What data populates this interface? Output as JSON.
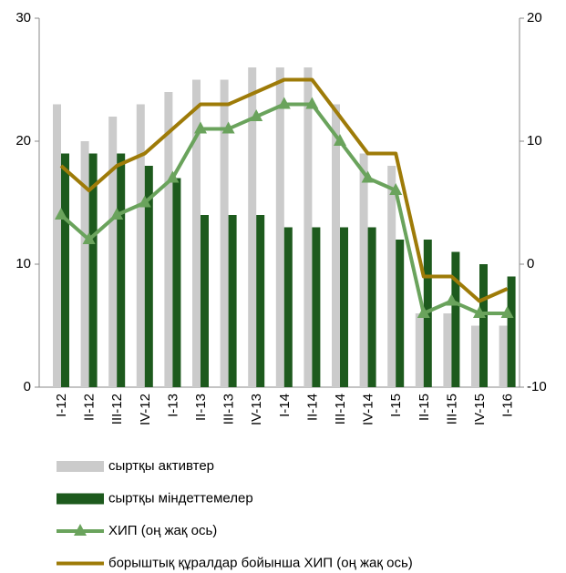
{
  "chart_data": {
    "type": "bar",
    "categories": [
      "I-12",
      "II-12",
      "III-12",
      "IV-12",
      "I-13",
      "II-13",
      "III-13",
      "IV-13",
      "I-14",
      "II-14",
      "III-14",
      "IV-14",
      "I-15",
      "II-15",
      "III-15",
      "IV-15",
      "I-16"
    ],
    "ylim": [
      0,
      30
    ],
    "yticks": [
      0,
      10,
      20,
      30
    ],
    "y2lim": [
      -10,
      20
    ],
    "y2ticks": [
      -10,
      0,
      10,
      20
    ],
    "series": [
      {
        "name": "сыртқы активтер",
        "type": "bar",
        "color": "#cbcbcb",
        "values": [
          23,
          20,
          22,
          23,
          24,
          25,
          25,
          26,
          26,
          26,
          23,
          19,
          18,
          6,
          6,
          5,
          5
        ]
      },
      {
        "name": "сыртқы міндеттемелер",
        "type": "bar",
        "color": "#1d5a1d",
        "values": [
          19,
          19,
          19,
          18,
          17,
          14,
          14,
          14,
          13,
          13,
          13,
          13,
          12,
          12,
          11,
          10,
          9
        ]
      },
      {
        "name": "ХИП (оң жақ ось)",
        "type": "line",
        "axis": "y2",
        "color": "#6aa35c",
        "marker": "triangle",
        "values": [
          4,
          2,
          4,
          5,
          7,
          11,
          11,
          12,
          13,
          13,
          10,
          7,
          6,
          -4,
          -3,
          -4,
          -4
        ]
      },
      {
        "name": "борыштық құралдар бойынша ХИП  (оң жақ ось)",
        "type": "line",
        "axis": "y2",
        "color": "#9e7b08",
        "values": [
          8,
          6,
          8,
          9,
          11,
          13,
          13,
          14,
          15,
          15,
          12,
          9,
          9,
          -1,
          -1,
          -3,
          -2
        ]
      }
    ]
  }
}
